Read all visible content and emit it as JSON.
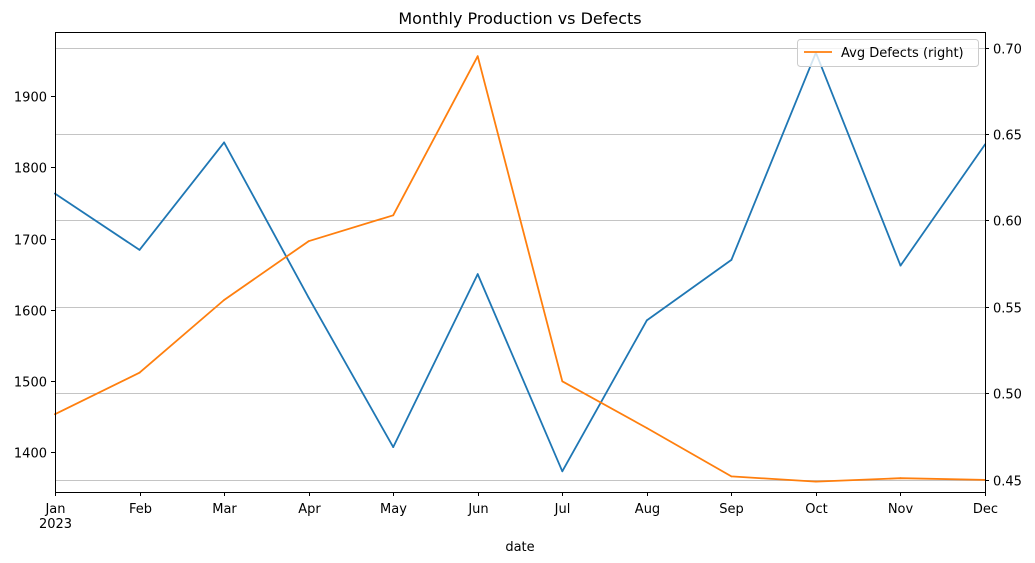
{
  "chart_data": {
    "type": "line",
    "title": "Monthly Production vs Defects",
    "xlabel": "date",
    "ylabel": "",
    "ylabel_right": "",
    "categories": [
      "Jan\n2023",
      "Feb",
      "Mar",
      "Apr",
      "May",
      "Jun",
      "Jul",
      "Aug",
      "Sep",
      "Oct",
      "Nov",
      "Dec"
    ],
    "ylim": [
      1344,
      1990
    ],
    "ylim_right": [
      0.443,
      0.709
    ],
    "yticks": [
      1400,
      1500,
      1600,
      1700,
      1800,
      1900
    ],
    "yticks_right": [
      0.45,
      0.5,
      0.55,
      0.6,
      0.65,
      0.7
    ],
    "ytick_labels_right": [
      "0.45",
      "0.50",
      "0.55",
      "0.60",
      "0.65",
      "0.70"
    ],
    "grid": "horizontal gridlines at right-axis ticks",
    "legend_position": "top-right",
    "series": [
      {
        "axis": "left",
        "color": "#1f77b4",
        "values": [
          1763,
          1684,
          1835,
          1617,
          1407,
          1650,
          1373,
          1585,
          1670,
          1961,
          1662,
          1832
        ]
      },
      {
        "name": "Avg Defects (right)",
        "axis": "right",
        "color": "#ff7f0e",
        "values": [
          0.488,
          0.512,
          0.554,
          0.588,
          0.603,
          0.695,
          0.507,
          0.48,
          0.452,
          0.449,
          0.451,
          0.45
        ]
      }
    ]
  }
}
